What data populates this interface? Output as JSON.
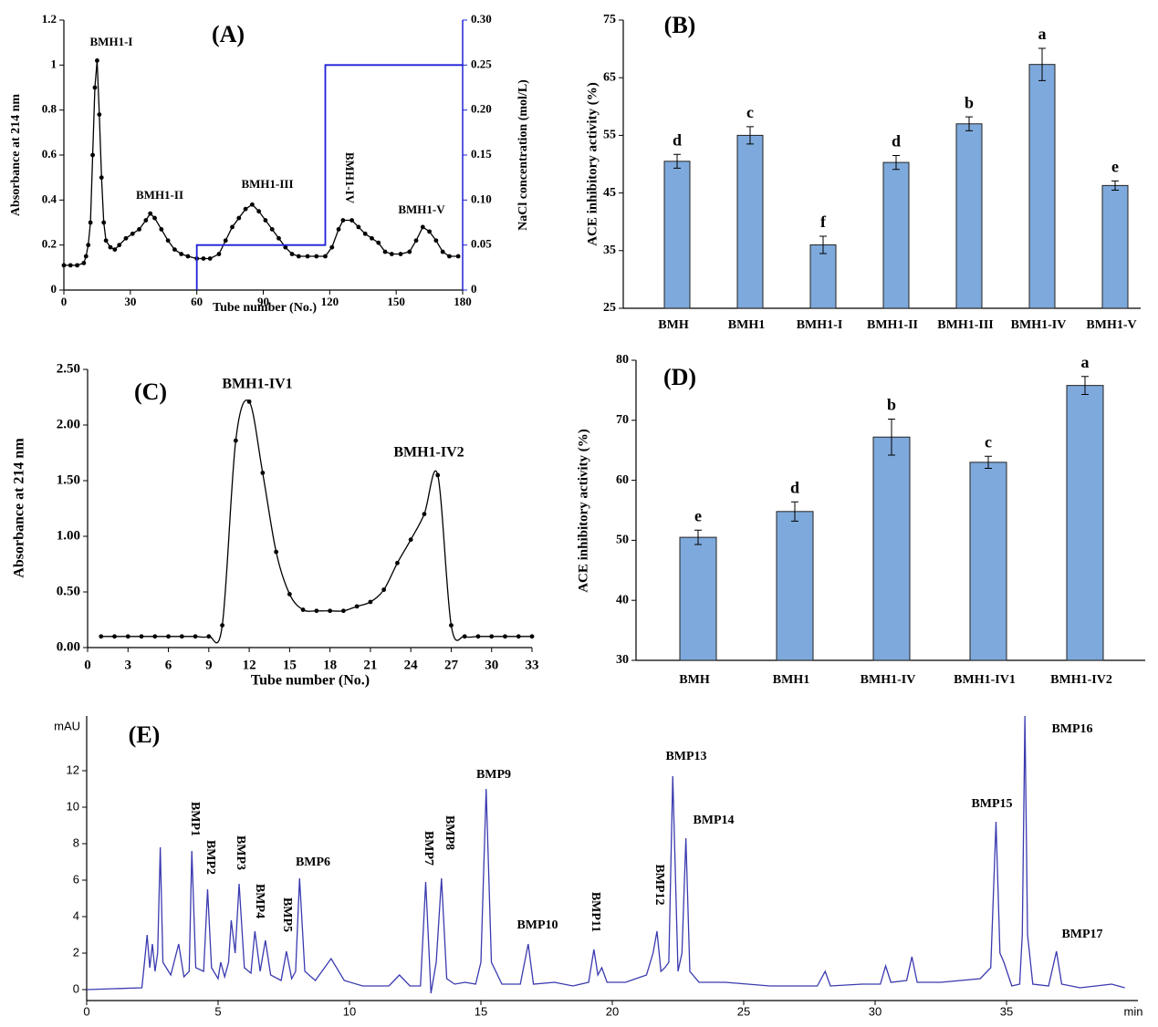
{
  "chart_data": [
    {
      "type": "line",
      "title": "(A)",
      "xlabel": "Tube number (No.)",
      "ylabel": "Absorbance at 214 nm",
      "y2label": "NaCl concentration (mol/L)",
      "xlim": [
        0,
        180
      ],
      "xticks": [
        0,
        30,
        60,
        90,
        120,
        150,
        180
      ],
      "ylim": [
        0,
        1.2
      ],
      "yticks": [
        0,
        0.2,
        0.4,
        0.6,
        0.8,
        1,
        1.2
      ],
      "y2lim": [
        0,
        0.3
      ],
      "y2ticks": [
        0,
        0.05,
        {
          "value": 0.1,
          "label": "0.10"
        },
        0.15,
        {
          "value": 0.2,
          "label": "0.20"
        },
        0.25,
        {
          "value": 0.3,
          "label": "0.30"
        }
      ],
      "series": [
        {
          "color": "#000000",
          "markers": true,
          "x": [
            0,
            3,
            6,
            9,
            10,
            11,
            12,
            13,
            14,
            15,
            16,
            17,
            18,
            19,
            21,
            23,
            25,
            28,
            31,
            34,
            37,
            39,
            41,
            44,
            47,
            50,
            53,
            56,
            60,
            63,
            66,
            70,
            73,
            76,
            79,
            82,
            85,
            88,
            91,
            94,
            97,
            100,
            103,
            106,
            110,
            114,
            118,
            121,
            124,
            126,
            130,
            133,
            136,
            139,
            142,
            145,
            148,
            152,
            156,
            159,
            162,
            165,
            168,
            171,
            174,
            178
          ],
          "values": [
            0.11,
            0.11,
            0.11,
            0.12,
            0.15,
            0.2,
            0.3,
            0.6,
            0.9,
            1.02,
            0.78,
            0.5,
            0.3,
            0.22,
            0.19,
            0.18,
            0.2,
            0.23,
            0.25,
            0.27,
            0.31,
            0.34,
            0.32,
            0.27,
            0.22,
            0.18,
            0.16,
            0.15,
            0.14,
            0.14,
            0.14,
            0.16,
            0.22,
            0.28,
            0.32,
            0.36,
            0.38,
            0.35,
            0.31,
            0.27,
            0.23,
            0.19,
            0.16,
            0.15,
            0.15,
            0.15,
            0.15,
            0.19,
            0.27,
            0.31,
            0.31,
            0.28,
            0.25,
            0.23,
            0.21,
            0.17,
            0.16,
            0.16,
            0.17,
            0.22,
            0.28,
            0.26,
            0.22,
            0.17,
            0.15,
            0.15
          ]
        },
        {
          "color": "#1f1fd6",
          "axis": "y2",
          "x": [
            60,
            60,
            118,
            118,
            180
          ],
          "values": [
            0,
            0.05,
            0.05,
            0.25,
            0.25
          ]
        }
      ],
      "annotations": [
        "BMH1-I",
        "BMH1-II",
        "BMH1-III",
        "BMH1-IV",
        "BMH1-V"
      ]
    },
    {
      "type": "bar",
      "title": "(B)",
      "ylabel": "ACE inhibitory activity (%)",
      "color": "#7ea9dc",
      "categories": [
        "BMH",
        "BMH1",
        "BMH1-I",
        "BMH1-II",
        "BMH1-III",
        "BMH1-IV",
        "BMH1-V"
      ],
      "values": [
        50.5,
        55,
        36,
        50.3,
        57,
        67.3,
        46.3
      ],
      "errors": [
        1.2,
        1.5,
        1.5,
        1.2,
        1.2,
        2.8,
        0.8
      ],
      "letters": [
        "d",
        "c",
        "f",
        "d",
        "b",
        "a",
        "e"
      ],
      "ylim": [
        25,
        75
      ],
      "yticks": [
        25,
        35,
        45,
        55,
        65,
        75
      ]
    },
    {
      "type": "line",
      "title": "(C)",
      "xlabel": "Tube number (No.)",
      "ylabel": "Absorbance at 214 nm",
      "xlim": [
        0,
        33
      ],
      "xticks": [
        0,
        3,
        6,
        9,
        12,
        15,
        18,
        21,
        24,
        27,
        30,
        33
      ],
      "ylim": [
        0,
        2.5
      ],
      "yticks": [
        {
          "value": 0,
          "label": "0.00"
        },
        {
          "value": 0.5,
          "label": "0.50"
        },
        {
          "value": 1,
          "label": "1.00"
        },
        {
          "value": 1.5,
          "label": "1.50"
        },
        {
          "value": 2,
          "label": "2.00"
        },
        {
          "value": 2.5,
          "label": "2.50"
        }
      ],
      "series": [
        {
          "color": "#000000",
          "markers": true,
          "smooth": true,
          "x": [
            1,
            2,
            3,
            4,
            5,
            6,
            7,
            8,
            9,
            10,
            11,
            12,
            13,
            14,
            15,
            16,
            17,
            18,
            19,
            20,
            21,
            22,
            23,
            24,
            25,
            26,
            27,
            28,
            29,
            30,
            31,
            32,
            33
          ],
          "values": [
            0.1,
            0.1,
            0.1,
            0.1,
            0.1,
            0.1,
            0.1,
            0.1,
            0.1,
            0.2,
            1.86,
            2.21,
            1.57,
            0.86,
            0.48,
            0.34,
            0.33,
            0.33,
            0.33,
            0.37,
            0.41,
            0.52,
            0.76,
            0.97,
            1.2,
            1.55,
            0.2,
            0.1,
            0.1,
            0.1,
            0.1,
            0.1,
            0.1
          ]
        }
      ],
      "annotations": [
        "BMH1-IV1",
        "BMH1-IV2"
      ]
    },
    {
      "type": "bar",
      "title": "(D)",
      "ylabel": "ACE inhibitory activity (%)",
      "color": "#7ea9dc",
      "categories": [
        "BMH",
        "BMH1",
        "BMH1-IV",
        "BMH1-IV1",
        "BMH1-IV2"
      ],
      "values": [
        50.5,
        54.8,
        67.2,
        63,
        75.8
      ],
      "errors": [
        1.2,
        1.6,
        3,
        1,
        1.5
      ],
      "letters": [
        "e",
        "d",
        "b",
        "c",
        "a"
      ],
      "ylim": [
        30,
        80
      ],
      "yticks": [
        30,
        40,
        50,
        60,
        70,
        80
      ]
    },
    {
      "type": "line",
      "title": "(E)",
      "xlabel": "min",
      "ylabel": "mAU",
      "xlim": [
        0,
        40
      ],
      "xticks": [
        0,
        5,
        10,
        15,
        20,
        25,
        30,
        35
      ],
      "ylim": [
        -0.6,
        15
      ],
      "yticks": [
        0,
        2,
        4,
        6,
        8,
        10,
        12
      ],
      "series": [
        {
          "color": "#3a3ab0",
          "x": [
            0,
            2.1,
            2.2,
            2.3,
            2.4,
            2.5,
            2.6,
            2.7,
            2.8,
            2.9,
            3.2,
            3.5,
            3.7,
            3.9,
            4.0,
            4.15,
            4.45,
            4.6,
            4.75,
            5.0,
            5.1,
            5.25,
            5.4,
            5.5,
            5.65,
            5.8,
            6.0,
            6.25,
            6.4,
            6.6,
            6.8,
            7.0,
            7.4,
            7.6,
            7.8,
            7.95,
            8.1,
            8.3,
            8.7,
            9.3,
            9.8,
            10.5,
            11.5,
            11.9,
            12.3,
            12.7,
            12.9,
            13.1,
            13.3,
            13.5,
            13.7,
            14.0,
            14.4,
            14.8,
            15.0,
            15.2,
            15.4,
            15.8,
            16.5,
            16.8,
            17.0,
            17.8,
            18.5,
            19.1,
            19.3,
            19.45,
            19.6,
            19.8,
            20.5,
            21.3,
            21.55,
            21.7,
            21.85,
            22.0,
            22.15,
            22.3,
            22.5,
            22.65,
            22.8,
            22.95,
            23.3,
            24.3,
            26.0,
            27.8,
            28.1,
            28.3,
            29.5,
            30.2,
            30.4,
            30.6,
            31.2,
            31.4,
            31.6,
            32.5,
            34.0,
            34.4,
            34.6,
            34.75,
            34.9,
            35.2,
            35.5,
            35.6,
            35.7,
            35.8,
            36.0,
            36.6,
            36.9,
            37.1,
            37.8,
            39.0,
            39.5
          ],
          "values": [
            0,
            0.1,
            1.5,
            3,
            1.2,
            2.5,
            1,
            2,
            7.8,
            1.5,
            0.8,
            2.5,
            0.7,
            1,
            7.6,
            1.2,
            1,
            5.5,
            1.2,
            0.6,
            1.5,
            0.7,
            1.5,
            3.8,
            2,
            5.8,
            1.2,
            0.9,
            3.2,
            1,
            2.7,
            0.8,
            0.5,
            2.1,
            0.6,
            1,
            6.1,
            1,
            0.5,
            1.7,
            0.5,
            0.2,
            0.2,
            0.8,
            0.2,
            0.2,
            5.9,
            -0.2,
            1.5,
            6.1,
            0.6,
            0.3,
            0.4,
            0.3,
            1.5,
            11,
            1.5,
            0.3,
            0.3,
            2.5,
            0.3,
            0.4,
            0.2,
            0.4,
            2.2,
            0.8,
            1.2,
            0.4,
            0.4,
            0.8,
            2,
            3.2,
            1,
            1.2,
            1.5,
            11.7,
            1,
            2,
            8.3,
            1,
            0.4,
            0.4,
            0.2,
            0.2,
            1,
            0.2,
            0.3,
            0.3,
            1.3,
            0.4,
            0.5,
            1.8,
            0.4,
            0.4,
            0.6,
            1.2,
            9.2,
            2,
            1.5,
            0.2,
            0.3,
            3,
            15,
            3,
            0.3,
            0.2,
            2.1,
            0.3,
            0.1,
            0.3,
            0.1
          ]
        }
      ],
      "annotations": [
        "BMP1",
        "BMP2",
        "BMP3",
        "BMP4",
        "BMP5",
        "BMP6",
        "BMP7",
        "BMP8",
        "BMP9",
        "BMP10",
        "BMP11",
        "BMP12",
        "BMP13",
        "BMP14",
        "BMP15",
        "BMP16",
        "BMP17"
      ]
    }
  ]
}
